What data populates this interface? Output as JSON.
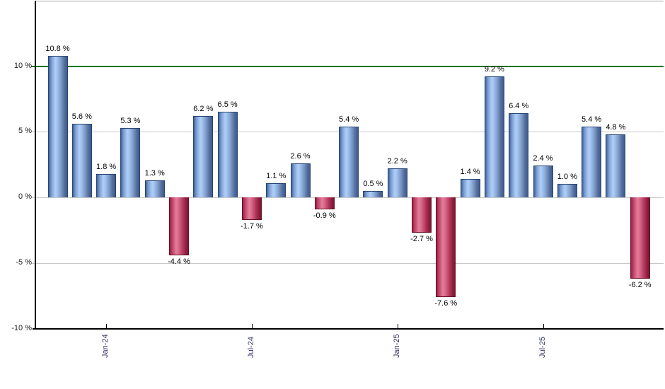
{
  "chart_data": {
    "type": "bar",
    "title": "",
    "values": [
      10.8,
      5.6,
      1.8,
      5.3,
      1.3,
      -4.4,
      6.2,
      6.5,
      -1.7,
      1.1,
      2.6,
      -0.9,
      5.4,
      0.5,
      2.2,
      -2.7,
      -7.6,
      1.4,
      9.2,
      6.4,
      2.4,
      1.0,
      5.4,
      4.8,
      -6.2
    ],
    "value_labels": [
      "10.8 %",
      "5.6 %",
      "1.8 %",
      "5.3 %",
      "1.3 %",
      "-4.4 %",
      "6.2 %",
      "6.5 %",
      "-1.7 %",
      "1.1 %",
      "2.6 %",
      "-0.9 %",
      "5.4 %",
      "0.5 %",
      "2.2 %",
      "-2.7 %",
      "-7.6 %",
      "1.4 %",
      "9.2 %",
      "6.4 %",
      "2.4 %",
      "1.0 %",
      "5.4 %",
      "4.8 %",
      "-6.2 %"
    ],
    "x_ticks": [
      {
        "label": "Jan-24",
        "bar_index": 2
      },
      {
        "label": "Jul-24",
        "bar_index": 8
      },
      {
        "label": "Jan-25",
        "bar_index": 14
      },
      {
        "label": "Jul-25",
        "bar_index": 20
      }
    ],
    "y_ticks": [
      {
        "label": "10 %",
        "value": 10
      },
      {
        "label": "5 %",
        "value": 5
      },
      {
        "label": "0 %",
        "value": 0
      },
      {
        "label": "-5 %",
        "value": -5
      },
      {
        "label": "-10 %",
        "value": -10
      }
    ],
    "ylim": [
      -10,
      15
    ],
    "grid": true,
    "legend": false,
    "bar_color_rule": "positive=blue, negative=red",
    "reference_line": {
      "value": 10,
      "color": "#0c760c"
    },
    "colors": {
      "positive_bar": "#7f9dcb",
      "positive_bar_border": "#274672",
      "negative_bar": "#c84f74",
      "negative_bar_border": "#671126",
      "gridline": "#c8c8c8",
      "axis": "#000000",
      "x_tick_label": "#333366",
      "y_tick_label": "#222222"
    }
  }
}
